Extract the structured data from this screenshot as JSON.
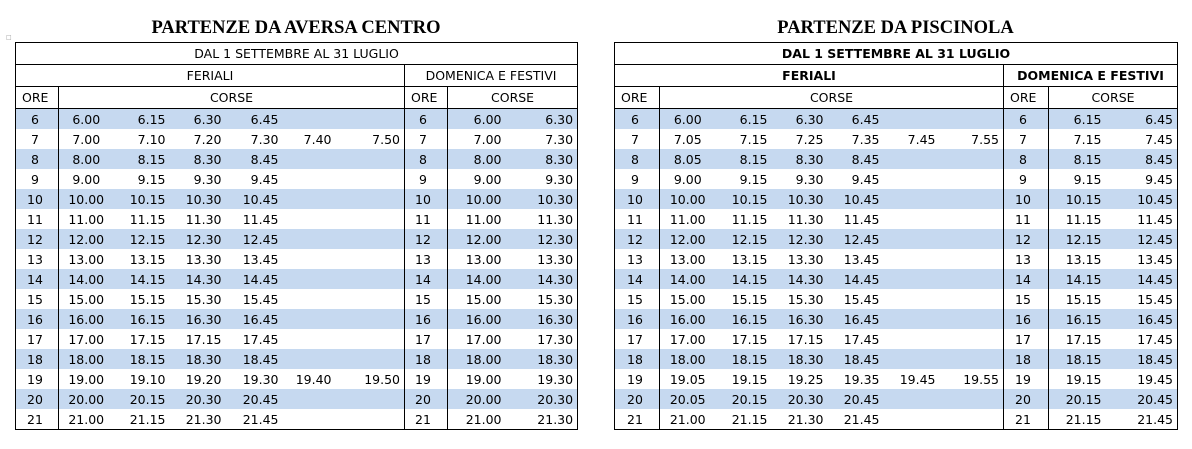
{
  "left": {
    "title": "PARTENZE DA AVERSA CENTRO",
    "period": "DAL 1 SETTEMBRE AL 31 LUGLIO",
    "feriali_label": "FERIALI",
    "festivi_label": "DOMENICA E FESTIVI",
    "ore_label": "ORE",
    "corse_label": "CORSE",
    "rows": [
      {
        "ore": "6",
        "feriali": [
          "6.00",
          "6.15",
          "6.30",
          "6.45",
          "",
          ""
        ],
        "festivi": [
          "6.00",
          "6.30"
        ]
      },
      {
        "ore": "7",
        "feriali": [
          "7.00",
          "7.10",
          "7.20",
          "7.30",
          "7.40",
          "7.50"
        ],
        "festivi": [
          "7.00",
          "7.30"
        ]
      },
      {
        "ore": "8",
        "feriali": [
          "8.00",
          "8.15",
          "8.30",
          "8.45",
          "",
          ""
        ],
        "festivi": [
          "8.00",
          "8.30"
        ]
      },
      {
        "ore": "9",
        "feriali": [
          "9.00",
          "9.15",
          "9.30",
          "9.45",
          "",
          ""
        ],
        "festivi": [
          "9.00",
          "9.30"
        ]
      },
      {
        "ore": "10",
        "feriali": [
          "10.00",
          "10.15",
          "10.30",
          "10.45",
          "",
          ""
        ],
        "festivi": [
          "10.00",
          "10.30"
        ]
      },
      {
        "ore": "11",
        "feriali": [
          "11.00",
          "11.15",
          "11.30",
          "11.45",
          "",
          ""
        ],
        "festivi": [
          "11.00",
          "11.30"
        ]
      },
      {
        "ore": "12",
        "feriali": [
          "12.00",
          "12.15",
          "12.30",
          "12.45",
          "",
          ""
        ],
        "festivi": [
          "12.00",
          "12.30"
        ]
      },
      {
        "ore": "13",
        "feriali": [
          "13.00",
          "13.15",
          "13.30",
          "13.45",
          "",
          ""
        ],
        "festivi": [
          "13.00",
          "13.30"
        ]
      },
      {
        "ore": "14",
        "feriali": [
          "14.00",
          "14.15",
          "14.30",
          "14.45",
          "",
          ""
        ],
        "festivi": [
          "14.00",
          "14.30"
        ]
      },
      {
        "ore": "15",
        "feriali": [
          "15.00",
          "15.15",
          "15.30",
          "15.45",
          "",
          ""
        ],
        "festivi": [
          "15.00",
          "15.30"
        ]
      },
      {
        "ore": "16",
        "feriali": [
          "16.00",
          "16.15",
          "16.30",
          "16.45",
          "",
          ""
        ],
        "festivi": [
          "16.00",
          "16.30"
        ]
      },
      {
        "ore": "17",
        "feriali": [
          "17.00",
          "17.15",
          "17.15",
          "17.45",
          "",
          ""
        ],
        "festivi": [
          "17.00",
          "17.30"
        ]
      },
      {
        "ore": "18",
        "feriali": [
          "18.00",
          "18.15",
          "18.30",
          "18.45",
          "",
          ""
        ],
        "festivi": [
          "18.00",
          "18.30"
        ]
      },
      {
        "ore": "19",
        "feriali": [
          "19.00",
          "19.10",
          "19.20",
          "19.30",
          "19.40",
          "19.50"
        ],
        "festivi": [
          "19.00",
          "19.30"
        ]
      },
      {
        "ore": "20",
        "feriali": [
          "20.00",
          "20.15",
          "20.30",
          "20.45",
          "",
          ""
        ],
        "festivi": [
          "20.00",
          "20.30"
        ]
      },
      {
        "ore": "21",
        "feriali": [
          "21.00",
          "21.15",
          "21.30",
          "21.45",
          "",
          ""
        ],
        "festivi": [
          "21.00",
          "21.30"
        ]
      }
    ]
  },
  "right": {
    "title": "PARTENZE DA PISCINOLA",
    "period": "DAL 1 SETTEMBRE AL 31 LUGLIO",
    "feriali_label": "FERIALI",
    "festivi_label": "DOMENICA E FESTIVI",
    "ore_label": "ORE",
    "corse_label": "CORSE",
    "rows": [
      {
        "ore": "6",
        "feriali": [
          "6.00",
          "6.15",
          "6.30",
          "6.45",
          "",
          ""
        ],
        "festivi": [
          "6.15",
          "6.45"
        ]
      },
      {
        "ore": "7",
        "feriali": [
          "7.05",
          "7.15",
          "7.25",
          "7.35",
          "7.45",
          "7.55"
        ],
        "festivi": [
          "7.15",
          "7.45"
        ]
      },
      {
        "ore": "8",
        "feriali": [
          "8.05",
          "8.15",
          "8.30",
          "8.45",
          "",
          ""
        ],
        "festivi": [
          "8.15",
          "8.45"
        ]
      },
      {
        "ore": "9",
        "feriali": [
          "9.00",
          "9.15",
          "9.30",
          "9.45",
          "",
          ""
        ],
        "festivi": [
          "9.15",
          "9.45"
        ]
      },
      {
        "ore": "10",
        "feriali": [
          "10.00",
          "10.15",
          "10.30",
          "10.45",
          "",
          ""
        ],
        "festivi": [
          "10.15",
          "10.45"
        ]
      },
      {
        "ore": "11",
        "feriali": [
          "11.00",
          "11.15",
          "11.30",
          "11.45",
          "",
          ""
        ],
        "festivi": [
          "11.15",
          "11.45"
        ]
      },
      {
        "ore": "12",
        "feriali": [
          "12.00",
          "12.15",
          "12.30",
          "12.45",
          "",
          ""
        ],
        "festivi": [
          "12.15",
          "12.45"
        ]
      },
      {
        "ore": "13",
        "feriali": [
          "13.00",
          "13.15",
          "13.30",
          "13.45",
          "",
          ""
        ],
        "festivi": [
          "13.15",
          "13.45"
        ]
      },
      {
        "ore": "14",
        "feriali": [
          "14.00",
          "14.15",
          "14.30",
          "14.45",
          "",
          ""
        ],
        "festivi": [
          "14.15",
          "14.45"
        ]
      },
      {
        "ore": "15",
        "feriali": [
          "15.00",
          "15.15",
          "15.30",
          "15.45",
          "",
          ""
        ],
        "festivi": [
          "15.15",
          "15.45"
        ]
      },
      {
        "ore": "16",
        "feriali": [
          "16.00",
          "16.15",
          "16.30",
          "16.45",
          "",
          ""
        ],
        "festivi": [
          "16.15",
          "16.45"
        ]
      },
      {
        "ore": "17",
        "feriali": [
          "17.00",
          "17.15",
          "17.15",
          "17.45",
          "",
          ""
        ],
        "festivi": [
          "17.15",
          "17.45"
        ]
      },
      {
        "ore": "18",
        "feriali": [
          "18.00",
          "18.15",
          "18.30",
          "18.45",
          "",
          ""
        ],
        "festivi": [
          "18.15",
          "18.45"
        ]
      },
      {
        "ore": "19",
        "feriali": [
          "19.05",
          "19.15",
          "19.25",
          "19.35",
          "19.45",
          "19.55"
        ],
        "festivi": [
          "19.15",
          "19.45"
        ]
      },
      {
        "ore": "20",
        "feriali": [
          "20.05",
          "20.15",
          "20.30",
          "20.45",
          "",
          ""
        ],
        "festivi": [
          "20.15",
          "20.45"
        ]
      },
      {
        "ore": "21",
        "feriali": [
          "21.00",
          "21.15",
          "21.30",
          "21.45",
          "",
          ""
        ],
        "festivi": [
          "21.15",
          "21.45"
        ]
      }
    ]
  },
  "style": {
    "band_color": "#c6d9f0",
    "border_color": "#000000"
  }
}
